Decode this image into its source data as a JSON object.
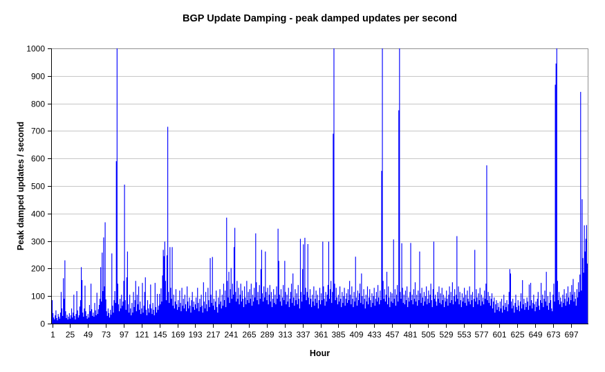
{
  "chart_data": {
    "type": "bar",
    "title": "BGP Update Damping - peak damped updates per second",
    "xlabel": "Hour",
    "ylabel": "Peak damped updates / second",
    "x_range": [
      1,
      719
    ],
    "x_ticks": [
      1,
      25,
      49,
      73,
      97,
      121,
      145,
      169,
      193,
      217,
      241,
      265,
      289,
      313,
      337,
      361,
      385,
      409,
      433,
      457,
      481,
      505,
      529,
      553,
      577,
      601,
      625,
      649,
      673,
      697
    ],
    "ylim": [
      0,
      1000
    ],
    "y_ticks": [
      0,
      100,
      200,
      300,
      400,
      500,
      600,
      700,
      800,
      900,
      1000
    ],
    "grid": "horizontal",
    "legend": "none",
    "series_name": "Peak damped updates per second",
    "series_color": "#0000FF",
    "gridline_color": "#C6C6C6",
    "frame_color": "#909090",
    "axis_color": "#000000",
    "notable_peaks": [
      {
        "hour": 88,
        "value": 1000
      },
      {
        "hour": 87,
        "value": 590
      },
      {
        "hour": 98,
        "value": 505
      },
      {
        "hour": 72,
        "value": 368
      },
      {
        "hour": 156,
        "value": 715
      },
      {
        "hour": 235,
        "value": 385
      },
      {
        "hour": 246,
        "value": 348
      },
      {
        "hour": 304,
        "value": 345
      },
      {
        "hour": 334,
        "value": 308
      },
      {
        "hour": 340,
        "value": 312
      },
      {
        "hour": 364,
        "value": 298
      },
      {
        "hour": 378,
        "value": 690
      },
      {
        "hour": 379,
        "value": 1000
      },
      {
        "hour": 443,
        "value": 555
      },
      {
        "hour": 444,
        "value": 1000
      },
      {
        "hour": 459,
        "value": 306
      },
      {
        "hour": 466,
        "value": 775
      },
      {
        "hour": 467,
        "value": 1000
      },
      {
        "hour": 513,
        "value": 298
      },
      {
        "hour": 544,
        "value": 318
      },
      {
        "hour": 584,
        "value": 575
      },
      {
        "hour": 677,
        "value": 945
      },
      {
        "hour": 678,
        "value": 1000
      },
      {
        "hour": 710,
        "value": 842
      },
      {
        "hour": 712,
        "value": 452
      },
      {
        "hour": 718,
        "value": 358
      }
    ],
    "values": [
      85,
      38,
      22,
      15,
      30,
      48,
      20,
      12,
      35,
      25,
      18,
      40,
      115,
      55,
      28,
      165,
      90,
      230,
      45,
      20,
      32,
      15,
      25,
      38,
      18,
      30,
      55,
      22,
      40,
      105,
      28,
      15,
      35,
      118,
      48,
      22,
      30,
      62,
      85,
      205,
      158,
      40,
      25,
      55,
      138,
      45,
      28,
      18,
      35,
      22,
      68,
      45,
      145,
      52,
      28,
      40,
      25,
      75,
      48,
      30,
      112,
      35,
      52,
      68,
      90,
      205,
      80,
      258,
      118,
      313,
      135,
      368,
      88,
      45,
      28,
      55,
      38,
      22,
      50,
      32,
      255,
      65,
      40,
      85,
      118,
      75,
      590,
      1000,
      145,
      70,
      45,
      90,
      55,
      105,
      65,
      80,
      155,
      505,
      85,
      50,
      168,
      262,
      70,
      40,
      105,
      55,
      30,
      75,
      40,
      115,
      60,
      85,
      155,
      45,
      105,
      70,
      135,
      50,
      80,
      35,
      55,
      148,
      40,
      65,
      115,
      168,
      50,
      30,
      85,
      55,
      40,
      70,
      142,
      55,
      35,
      75,
      50,
      30,
      148,
      60,
      40,
      108,
      50,
      65,
      108,
      70,
      128,
      80,
      175,
      268,
      245,
      298,
      155,
      85,
      248,
      715,
      115,
      75,
      278,
      130,
      90,
      278,
      65,
      105,
      55,
      80,
      125,
      70,
      50,
      85,
      60,
      120,
      75,
      45,
      130,
      65,
      90,
      55,
      105,
      70,
      45,
      135,
      80,
      55,
      95,
      65,
      40,
      85,
      115,
      60,
      80,
      50,
      70,
      95,
      55,
      130,
      75,
      45,
      90,
      60,
      105,
      65,
      40,
      150,
      80,
      55,
      115,
      70,
      45,
      130,
      85,
      60,
      238,
      105,
      75,
      242,
      65,
      90,
      50,
      80,
      120,
      60,
      40,
      95,
      70,
      125,
      80,
      55,
      105,
      65,
      145,
      85,
      120,
      60,
      385,
      155,
      95,
      188,
      75,
      125,
      202,
      90,
      145,
      105,
      278,
      348,
      115,
      80,
      155,
      90,
      130,
      70,
      105,
      145,
      80,
      120,
      90,
      60,
      135,
      95,
      70,
      155,
      85,
      115,
      75,
      125,
      90,
      145,
      65,
      105,
      80,
      130,
      95,
      328,
      150,
      85,
      115,
      70,
      140,
      90,
      198,
      268,
      110,
      80,
      135,
      95,
      262,
      115,
      85,
      130,
      70,
      105,
      140,
      80,
      115,
      60,
      90,
      125,
      75,
      105,
      70,
      135,
      90,
      345,
      228,
      105,
      80,
      125,
      65,
      95,
      140,
      85,
      228,
      115,
      70,
      105,
      80,
      130,
      60,
      90,
      115,
      145,
      75,
      182,
      95,
      65,
      125,
      85,
      110,
      70,
      140,
      90,
      55,
      308,
      115,
      80,
      198,
      288,
      105,
      312,
      130,
      85,
      115,
      289,
      95,
      70,
      125,
      90,
      60,
      105,
      80,
      135,
      65,
      90,
      120,
      75,
      105,
      55,
      85,
      130,
      70,
      110,
      85,
      298,
      135,
      90,
      65,
      115,
      80,
      105,
      140,
      298,
      90,
      125,
      155,
      75,
      115,
      690,
      1000,
      145,
      85,
      130,
      95,
      70,
      105,
      80,
      135,
      90,
      60,
      115,
      75,
      100,
      130,
      65,
      90,
      110,
      75,
      125,
      85,
      155,
      105,
      70,
      135,
      90,
      60,
      115,
      80,
      243,
      95,
      65,
      120,
      85,
      110,
      145,
      75,
      182,
      100,
      70,
      125,
      90,
      55,
      105,
      80,
      135,
      70,
      95,
      125,
      85,
      60,
      110,
      75,
      100,
      130,
      65,
      90,
      115,
      80,
      140,
      95,
      70,
      120,
      85,
      555,
      1000,
      155,
      90,
      125,
      80,
      105,
      188,
      70,
      135,
      95,
      60,
      115,
      80,
      110,
      75,
      306,
      90,
      125,
      65,
      105,
      140,
      80,
      775,
      1000,
      115,
      90,
      292,
      130,
      75,
      105,
      70,
      120,
      85,
      135,
      60,
      95,
      80,
      115,
      293,
      85,
      105,
      70,
      125,
      90,
      150,
      80,
      105,
      65,
      120,
      85,
      262,
      110,
      75,
      130,
      95,
      65,
      115,
      80,
      100,
      135,
      70,
      90,
      120,
      75,
      105,
      145,
      85,
      60,
      125,
      298,
      90,
      105,
      80,
      65,
      115,
      90,
      135,
      75,
      110,
      70,
      130,
      85,
      105,
      60,
      95,
      80,
      120,
      90,
      65,
      105,
      135,
      75,
      115,
      85,
      150,
      70,
      100,
      125,
      80,
      105,
      318,
      90,
      135,
      70,
      115,
      85,
      60,
      110,
      80,
      95,
      130,
      75,
      105,
      65,
      120,
      90,
      80,
      135,
      70,
      105,
      85,
      115,
      60,
      90,
      268,
      80,
      125,
      95,
      70,
      110,
      85,
      130,
      65,
      105,
      80,
      95,
      70,
      120,
      90,
      145,
      575,
      85,
      115,
      75,
      100,
      65,
      90,
      110,
      55,
      80,
      95,
      40,
      70,
      85,
      50,
      75,
      60,
      45,
      80,
      55,
      90,
      40,
      65,
      105,
      50,
      75,
      60,
      85,
      45,
      70,
      115,
      198,
      182,
      80,
      55,
      90,
      65,
      40,
      75,
      105,
      60,
      50,
      85,
      65,
      45,
      80,
      110,
      55,
      158,
      70,
      90,
      50,
      75,
      60,
      95,
      80,
      50,
      142,
      65,
      148,
      85,
      55,
      75,
      105,
      70,
      45,
      80,
      60,
      90,
      115,
      65,
      50,
      85,
      148,
      75,
      105,
      60,
      90,
      120,
      80,
      188,
      65,
      100,
      50,
      75,
      115,
      85,
      55,
      45,
      105,
      145,
      80,
      868,
      945,
      1000,
      155,
      85,
      115,
      70,
      95,
      80,
      60,
      105,
      75,
      125,
      90,
      65,
      110,
      80,
      135,
      95,
      70,
      115,
      85,
      140,
      105,
      162,
      80,
      115,
      90,
      65,
      125,
      95,
      150,
      115,
      178,
      842,
      120,
      452,
      238,
      185,
      357,
      262,
      308,
      358,
      218
    ]
  }
}
